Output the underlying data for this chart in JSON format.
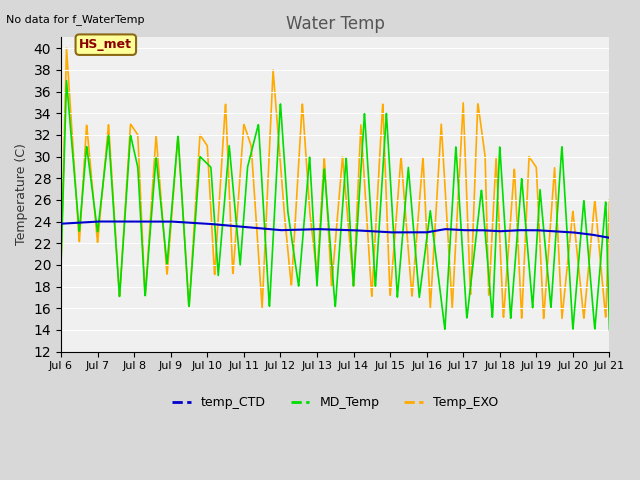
{
  "title": "Water Temp",
  "no_data_text": "No data for f_WaterTemp",
  "ylabel": "Temperature (C)",
  "ylim": [
    12,
    41
  ],
  "yticks": [
    12,
    14,
    16,
    18,
    20,
    22,
    24,
    26,
    28,
    30,
    32,
    34,
    36,
    38,
    40
  ],
  "bg_color": "#e8e8e8",
  "plot_bg_color": "#f0f0f0",
  "line_colors": {
    "temp_CTD": "#0000cc",
    "MD_Temp": "#00dd00",
    "Temp_EXO": "#ffaa00"
  },
  "legend_labels": [
    "temp_CTD",
    "MD_Temp",
    "Temp_EXO"
  ],
  "hs_met_box_color": "#ffff99",
  "hs_met_text_color": "#8b0000",
  "title_color": "#555555",
  "axis_label_color": "#333333"
}
